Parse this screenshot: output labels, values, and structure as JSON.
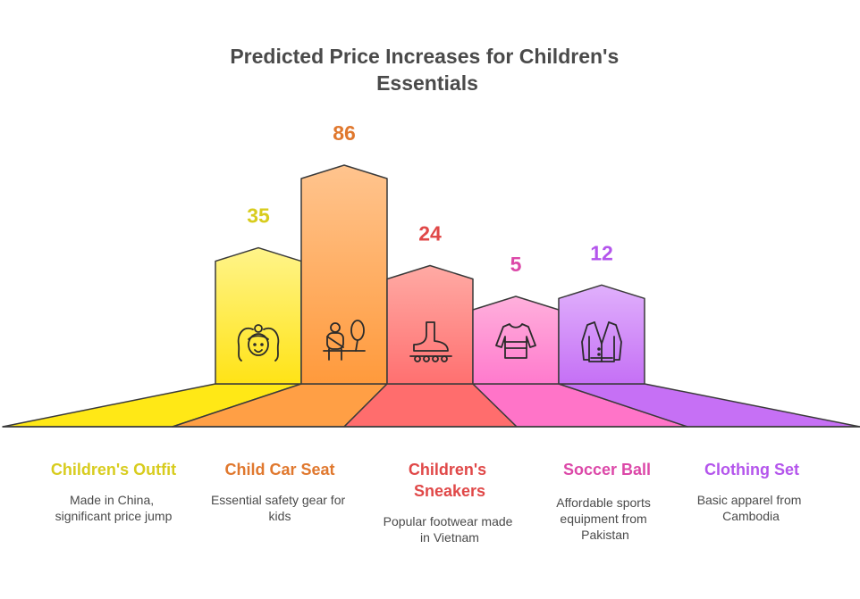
{
  "chart_data": {
    "type": "bar",
    "title_lines": [
      "Predicted Price Increases for Children's",
      "Essentials"
    ],
    "categories": [
      "Children's Outfit",
      "Child Car Seat",
      "Children's Sneakers",
      "Soccer Ball",
      "Clothing Set"
    ],
    "label_lines": [
      [
        "Children's Outfit"
      ],
      [
        "Child Car Seat"
      ],
      [
        "Children's",
        "Sneakers"
      ],
      [
        "Soccer Ball"
      ],
      [
        "Clothing Set"
      ]
    ],
    "values": [
      35,
      86,
      24,
      5,
      12
    ],
    "value_labels": [
      "35",
      "86",
      "24",
      "5",
      "12"
    ],
    "descriptions": [
      [
        "Made in China,",
        "significant price jump"
      ],
      [
        "Essential safety gear for",
        "kids"
      ],
      [
        "Popular footwear made",
        "in Vietnam"
      ],
      [
        "Affordable sports",
        "equipment from",
        "Pakistan"
      ],
      [
        "Basic apparel from",
        "Cambodia"
      ]
    ],
    "icons": [
      "girl-face-icon",
      "car-seat-child-icon",
      "roller-skate-icon",
      "sweater-icon",
      "cardigan-icon"
    ],
    "colors": {
      "label": [
        "#d8cc1e",
        "#e0782e",
        "#e04848",
        "#dc48a8",
        "#b455ec"
      ],
      "bar_top": [
        "#fff48a",
        "#ffc48e",
        "#ffaaa4",
        "#ffb0dc",
        "#e0b0fc"
      ],
      "bar_bottom": [
        "#ffe316",
        "#ff9a3c",
        "#ff7070",
        "#ff7acd",
        "#c570f5"
      ],
      "base": [
        "#ffe816",
        "#ff9f45",
        "#ff6d6d",
        "#ff74c8",
        "#c670f5"
      ]
    },
    "ylim": [
      0,
      86
    ],
    "xlabel": "",
    "ylabel": ""
  }
}
